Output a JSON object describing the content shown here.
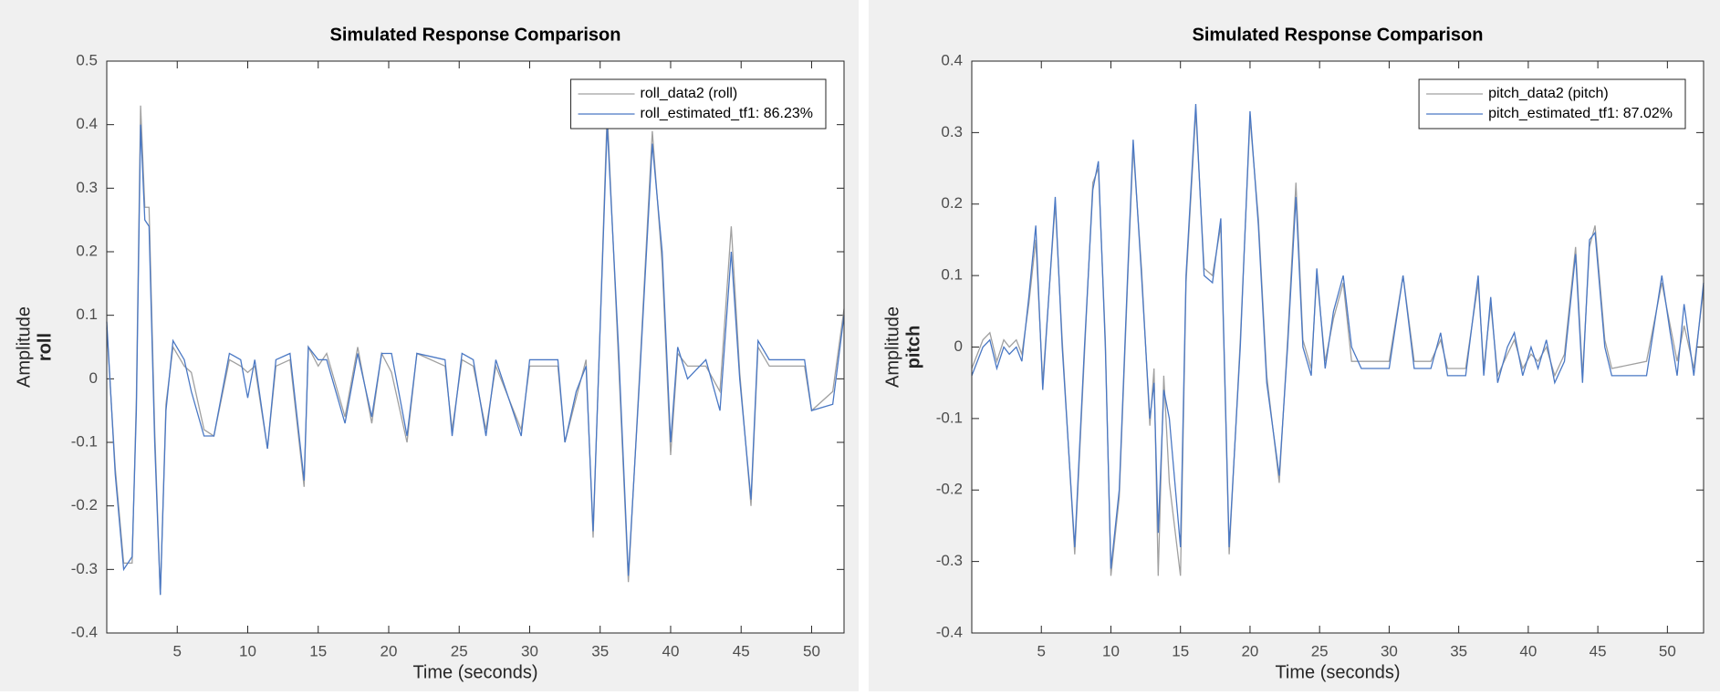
{
  "chart_data": [
    {
      "type": "line",
      "title": "Simulated Response Comparison",
      "x_label": "Time (seconds)",
      "y_label": "Amplitude",
      "y_channel": "roll",
      "x": [
        0,
        0.6,
        1.2,
        1.8,
        2.1,
        2.4,
        2.7,
        3.0,
        3.4,
        3.8,
        4.2,
        4.7,
        5.5,
        6.0,
        6.9,
        7.6,
        8.7,
        9.5,
        10.0,
        10.5,
        11.4,
        12.0,
        13.0,
        14.0,
        14.3,
        15.0,
        15.6,
        16.9,
        17.8,
        18.8,
        19.5,
        20.2,
        21.3,
        22.0,
        24.0,
        24.5,
        25.2,
        26.0,
        26.9,
        27.6,
        29.4,
        30.0,
        32.0,
        32.5,
        33.3,
        34.0,
        34.5,
        35.5,
        36.3,
        37.0,
        37.8,
        38.7,
        39.4,
        40.0,
        40.5,
        41.2,
        42.5,
        43.5,
        44.3,
        44.9,
        45.7,
        46.2,
        47.0,
        49.5,
        50.0,
        51.5,
        52.3
      ],
      "series": [
        {
          "name": "roll_data2 (roll)",
          "color": "#a0a0a0",
          "values": [
            0.08,
            -0.14,
            -0.29,
            -0.29,
            -0.03,
            0.43,
            0.27,
            0.27,
            -0.08,
            -0.34,
            -0.04,
            0.05,
            0.02,
            0.01,
            -0.08,
            -0.09,
            0.03,
            0.02,
            0.01,
            0.02,
            -0.11,
            0.02,
            0.03,
            -0.17,
            0.05,
            0.02,
            0.04,
            -0.06,
            0.05,
            -0.07,
            0.04,
            0.01,
            -0.1,
            0.04,
            0.02,
            -0.08,
            0.03,
            0.02,
            -0.08,
            0.02,
            -0.08,
            0.02,
            0.02,
            -0.1,
            -0.03,
            0.03,
            -0.25,
            0.42,
            0.03,
            -0.32,
            0.01,
            0.39,
            0.18,
            -0.12,
            0.04,
            0.02,
            0.02,
            -0.02,
            0.24,
            0.01,
            -0.2,
            0.05,
            0.02,
            0.02,
            -0.05,
            -0.02,
            0.11
          ]
        },
        {
          "name": "roll_estimated_tf1: 86.23%",
          "color": "#4a78c4",
          "values": [
            0.09,
            -0.15,
            -0.3,
            -0.28,
            -0.05,
            0.4,
            0.25,
            0.24,
            -0.1,
            -0.34,
            -0.05,
            0.06,
            0.03,
            -0.02,
            -0.09,
            -0.09,
            0.04,
            0.03,
            -0.03,
            0.03,
            -0.11,
            0.03,
            0.04,
            -0.16,
            0.05,
            0.03,
            0.03,
            -0.07,
            0.04,
            -0.06,
            0.04,
            0.04,
            -0.09,
            0.04,
            0.03,
            -0.09,
            0.04,
            0.03,
            -0.09,
            0.03,
            -0.09,
            0.03,
            0.03,
            -0.1,
            -0.02,
            0.02,
            -0.24,
            0.4,
            0.05,
            -0.31,
            0.0,
            0.37,
            0.2,
            -0.1,
            0.05,
            0.0,
            0.03,
            -0.05,
            0.2,
            0.0,
            -0.19,
            0.06,
            0.03,
            0.03,
            -0.05,
            -0.04,
            0.1
          ]
        }
      ],
      "xlim": [
        0,
        52.3
      ],
      "ylim": [
        -0.4,
        0.5
      ],
      "xticks": [
        5,
        10,
        15,
        20,
        25,
        30,
        35,
        40,
        45,
        50
      ],
      "yticks": [
        -0.4,
        -0.3,
        -0.2,
        -0.1,
        0,
        0.1,
        0.2,
        0.3,
        0.4,
        0.5
      ],
      "legend": "upper right"
    },
    {
      "type": "line",
      "title": "Simulated Response Comparison",
      "x_label": "Time (seconds)",
      "y_label": "Amplitude",
      "y_channel": "pitch",
      "x": [
        0,
        0.8,
        1.3,
        1.8,
        2.3,
        2.7,
        3.2,
        3.6,
        4.1,
        4.6,
        5.1,
        6.0,
        6.5,
        7.4,
        8.1,
        8.7,
        9.1,
        9.6,
        10.0,
        10.6,
        11.2,
        11.6,
        12.2,
        12.8,
        13.1,
        13.4,
        13.8,
        14.2,
        15.0,
        15.4,
        16.1,
        16.7,
        17.3,
        17.9,
        18.5,
        19.3,
        20.0,
        20.6,
        21.2,
        22.1,
        22.7,
        23.3,
        23.8,
        24.4,
        24.8,
        25.4,
        26.0,
        26.7,
        27.3,
        28.0,
        30.0,
        31.0,
        31.8,
        33.0,
        33.7,
        34.2,
        35.5,
        36.4,
        36.8,
        37.3,
        37.8,
        38.5,
        39.0,
        39.6,
        40.2,
        40.7,
        41.3,
        41.9,
        42.6,
        43.4,
        43.9,
        44.4,
        44.8,
        45.5,
        46.0,
        48.5,
        49.6,
        50.2,
        50.7,
        51.2,
        51.9,
        52.6
      ],
      "series": [
        {
          "name": "pitch_data2 (pitch)",
          "color": "#a0a0a0",
          "values": [
            -0.03,
            0.01,
            0.02,
            -0.02,
            0.01,
            0.0,
            0.01,
            -0.01,
            0.06,
            0.15,
            -0.05,
            0.2,
            0.01,
            -0.29,
            -0.01,
            0.23,
            0.25,
            0.01,
            -0.32,
            -0.21,
            0.09,
            0.28,
            0.11,
            -0.11,
            -0.03,
            -0.32,
            -0.04,
            -0.19,
            -0.32,
            0.09,
            0.33,
            0.11,
            0.1,
            0.17,
            -0.29,
            0.01,
            0.32,
            0.18,
            -0.04,
            -0.19,
            0.01,
            0.23,
            0.01,
            -0.03,
            0.1,
            -0.02,
            0.04,
            0.09,
            -0.02,
            -0.02,
            -0.02,
            0.1,
            -0.02,
            -0.02,
            0.01,
            -0.03,
            -0.03,
            0.09,
            -0.03,
            0.06,
            -0.04,
            -0.01,
            0.01,
            -0.03,
            -0.01,
            -0.02,
            0.0,
            -0.04,
            -0.01,
            0.14,
            -0.04,
            0.14,
            0.17,
            0.01,
            -0.03,
            -0.02,
            0.09,
            0.03,
            -0.02,
            0.03,
            -0.03,
            0.08
          ]
        },
        {
          "name": "pitch_estimated_tf1: 87.02%",
          "color": "#4a78c4",
          "values": [
            -0.04,
            0.0,
            0.01,
            -0.03,
            0.0,
            -0.01,
            0.0,
            -0.02,
            0.07,
            0.17,
            -0.06,
            0.21,
            0.0,
            -0.28,
            0.0,
            0.22,
            0.26,
            0.0,
            -0.31,
            -0.2,
            0.1,
            0.29,
            0.1,
            -0.1,
            -0.05,
            -0.26,
            -0.06,
            -0.1,
            -0.28,
            0.1,
            0.34,
            0.1,
            0.09,
            0.18,
            -0.28,
            0.0,
            0.33,
            0.17,
            -0.05,
            -0.18,
            0.0,
            0.21,
            0.0,
            -0.04,
            0.11,
            -0.03,
            0.05,
            0.1,
            0.0,
            -0.03,
            -0.03,
            0.1,
            -0.03,
            -0.03,
            0.02,
            -0.04,
            -0.04,
            0.1,
            -0.04,
            0.07,
            -0.05,
            0.0,
            0.02,
            -0.04,
            0.0,
            -0.03,
            0.01,
            -0.05,
            -0.02,
            0.13,
            -0.05,
            0.15,
            0.16,
            0.0,
            -0.04,
            -0.04,
            0.1,
            0.02,
            -0.04,
            0.06,
            -0.04,
            0.09
          ]
        }
      ],
      "xlim": [
        0,
        52.6
      ],
      "ylim": [
        -0.4,
        0.4
      ],
      "xticks": [
        5,
        10,
        15,
        20,
        25,
        30,
        35,
        40,
        45,
        50
      ],
      "yticks": [
        -0.4,
        -0.3,
        -0.2,
        -0.1,
        0,
        0.1,
        0.2,
        0.3,
        0.4
      ],
      "legend": "upper right"
    }
  ]
}
